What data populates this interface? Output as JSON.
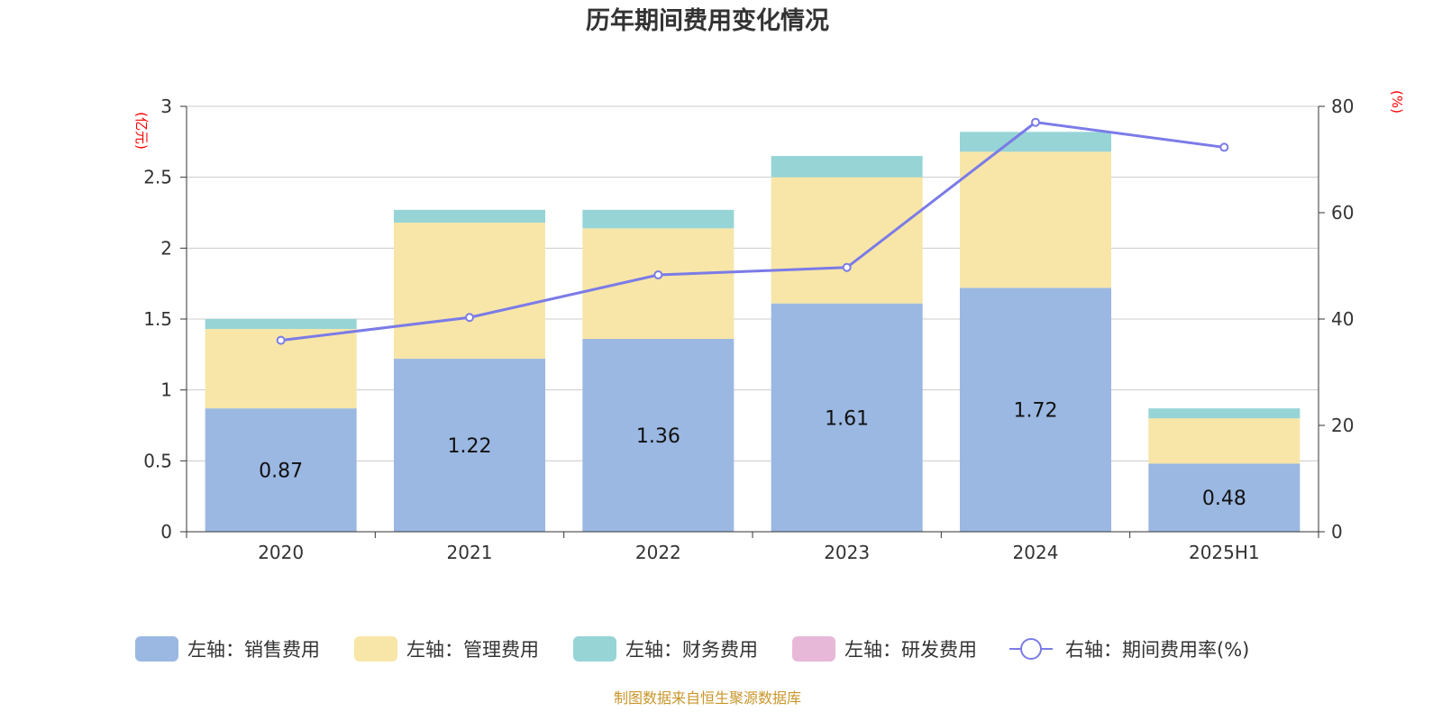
{
  "title": "历年期间费用变化情况",
  "source": "制图数据来自恒生聚源数据库",
  "chart_data": {
    "type": "bar",
    "stacked": true,
    "title": "历年期间费用变化情况",
    "categories": [
      "2020",
      "2021",
      "2022",
      "2023",
      "2024",
      "2025H1"
    ],
    "left_axis": {
      "unit": "(亿元)",
      "ylim": [
        0,
        3
      ],
      "ticks": [
        "0",
        "0.5",
        "1",
        "1.5",
        "2",
        "2.5",
        "3"
      ]
    },
    "right_axis": {
      "unit": "(%)",
      "ylim": [
        0,
        80
      ],
      "ticks": [
        "0",
        "20",
        "40",
        "60",
        "80"
      ]
    },
    "series": [
      {
        "name": "左轴：销售费用",
        "axis": "left",
        "color": "#9bb8e2",
        "values": [
          0.87,
          1.22,
          1.36,
          1.61,
          1.72,
          0.48
        ],
        "labels": [
          "0.87",
          "1.22",
          "1.36",
          "1.61",
          "1.72",
          "0.48"
        ]
      },
      {
        "name": "左轴：管理费用",
        "axis": "left",
        "color": "#f7e6a8",
        "values": [
          0.56,
          0.96,
          0.78,
          0.89,
          0.96,
          0.32
        ]
      },
      {
        "name": "左轴：财务费用",
        "axis": "left",
        "color": "#97d4d6",
        "values": [
          0.07,
          0.09,
          0.13,
          0.15,
          0.14,
          0.07
        ]
      },
      {
        "name": "左轴：研发费用",
        "axis": "left",
        "color": "#e8b8d8",
        "values": [
          0,
          0,
          0,
          0,
          0,
          0
        ]
      },
      {
        "name": "右轴：期间费用率(%)",
        "axis": "right",
        "type": "line",
        "color": "#7b7be8",
        "values": [
          36,
          40.3,
          48.3,
          49.7,
          77,
          72.3
        ]
      }
    ],
    "grid": true,
    "legend_position": "bottom"
  }
}
